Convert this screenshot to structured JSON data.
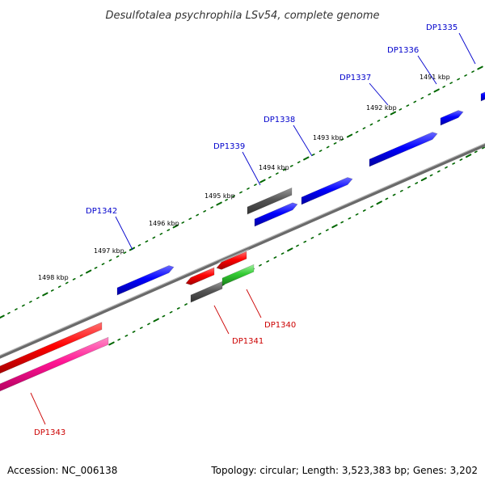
{
  "title": "Desulfotalea psychrophila LSv54, complete genome",
  "footer": {
    "accession": "Accession: NC_006138",
    "summary": "Topology: circular; Length: 3,523,383 bp; Genes: 3,202"
  },
  "scale_labels": [
    "1498 kbp",
    "1497 kbp",
    "1496 kbp",
    "1495 kbp",
    "1494 kbp",
    "1493 kbp",
    "1492 kbp",
    "1491 kbp"
  ],
  "genes": [
    {
      "label": "DP1335",
      "strand": "forward",
      "color": "#0000ff"
    },
    {
      "label": "DP1336",
      "strand": "forward",
      "color": "#0000ff"
    },
    {
      "label": "DP1337",
      "strand": "forward",
      "color": "#0000ff"
    },
    {
      "label": "DP1338",
      "strand": "forward",
      "color": "#0000ff"
    },
    {
      "label": "DP1339",
      "strand": "forward",
      "color": "#0000ff"
    },
    {
      "label": "DP1342",
      "strand": "forward",
      "color": "#0000ff"
    },
    {
      "label": "DP1340",
      "strand": "reverse",
      "color": "#ff0000"
    },
    {
      "label": "DP1341",
      "strand": "reverse",
      "color": "#ff0000"
    },
    {
      "label": "DP1343",
      "strand": "reverse",
      "color": "#ff0000"
    }
  ],
  "colors": {
    "forward_label": "#0000cc",
    "reverse_label": "#cc0000",
    "forward_gene": "#0000ff",
    "reverse_gene": "#ff0000",
    "pink_gene": "#ff1493",
    "gray_gene": "#555555",
    "green_gene": "#33cc33",
    "backbone": "#777777",
    "tick": "#006600"
  }
}
